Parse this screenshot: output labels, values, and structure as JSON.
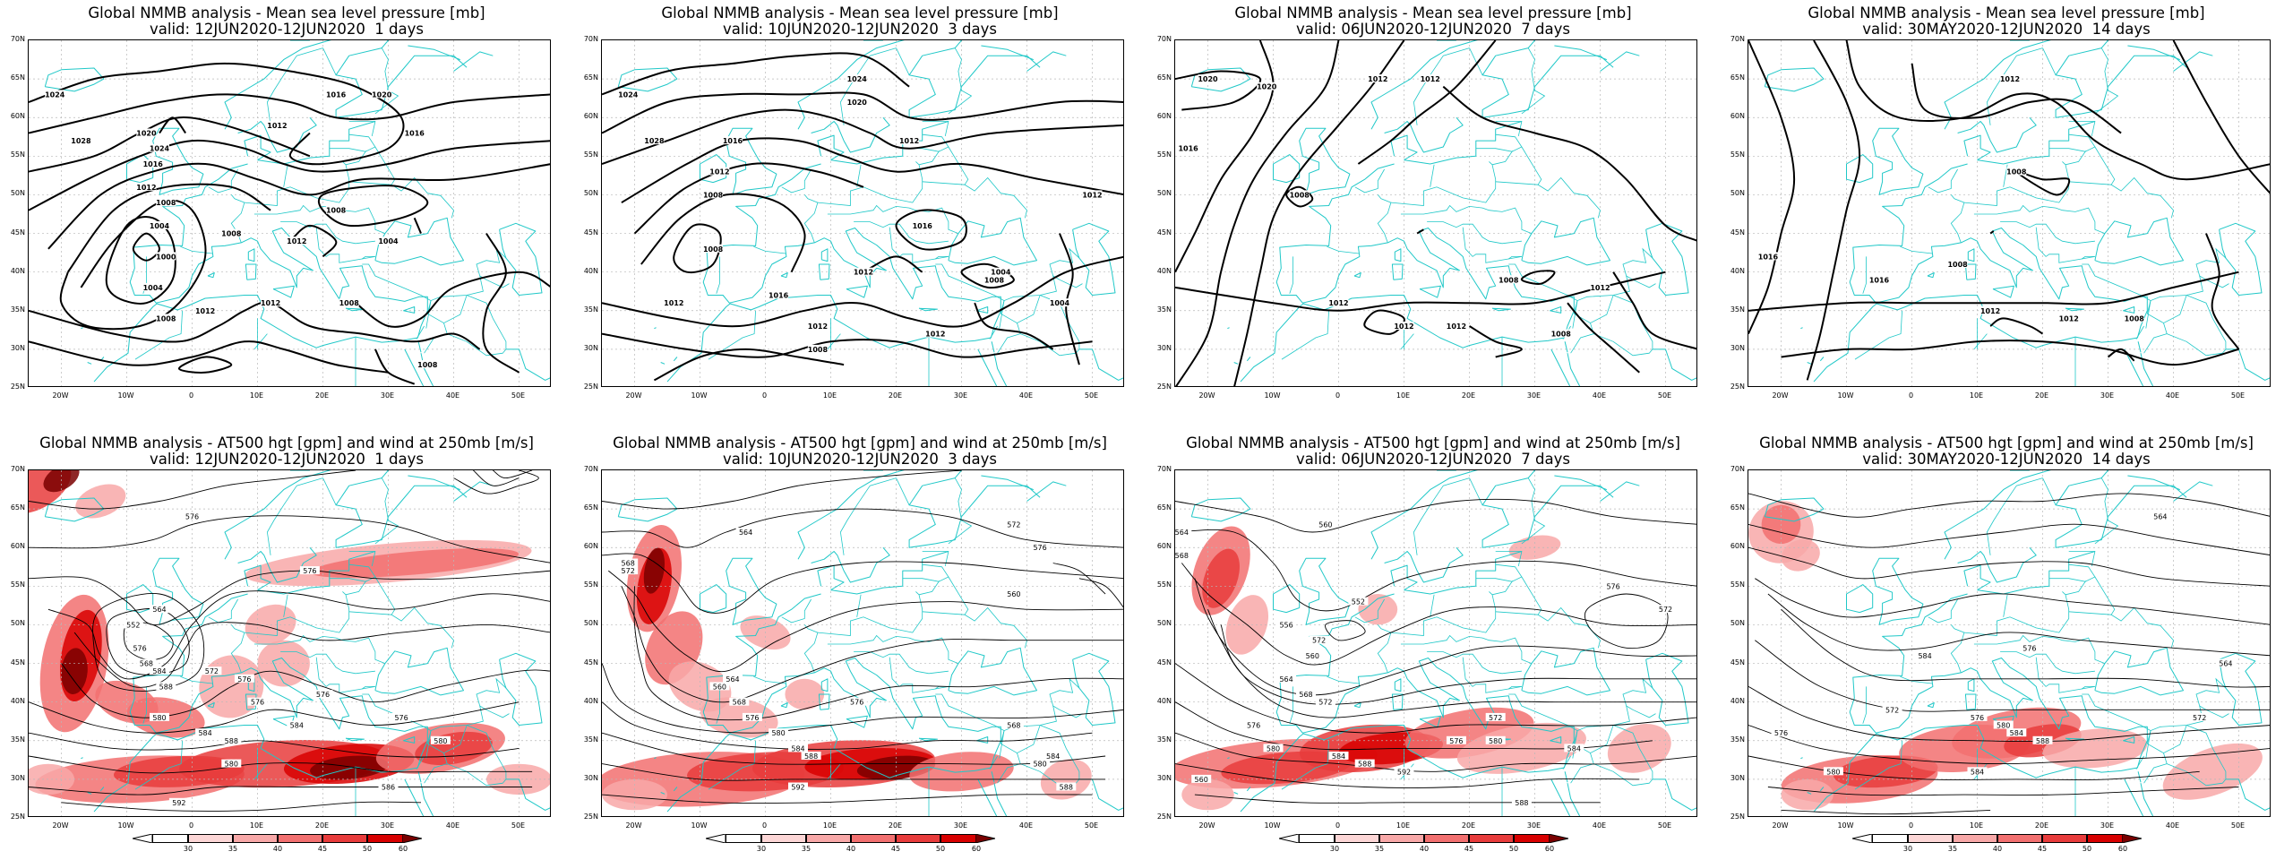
{
  "colors": {
    "coast": "#20c8c8",
    "contour": "#000000",
    "grid": "#b8b8b8",
    "wind": [
      "#ffffff",
      "#fcd6d6",
      "#f8a8a8",
      "#f27070",
      "#e83c3c",
      "#d80000",
      "#7a0000"
    ]
  },
  "lat_labels": [
    "70N",
    "65N",
    "60N",
    "55N",
    "50N",
    "45N",
    "40N",
    "35N",
    "30N",
    "25N"
  ],
  "lon_labels": [
    "20W",
    "10W",
    "0",
    "10E",
    "20E",
    "30E",
    "40E",
    "50E"
  ],
  "colorbar_ticks": [
    "30",
    "35",
    "40",
    "45",
    "50",
    "60"
  ],
  "panels": [
    {
      "title": "Global NMMB analysis - Mean sea level pressure [mb]",
      "subtitle": "valid: 12JUN2020-12JUN2020  1 days",
      "labels": [
        "1024",
        "1028",
        "1020",
        "1024",
        "1016",
        "1012",
        "1008",
        "1004",
        "1000",
        "1004",
        "1008",
        "1012",
        "1008",
        "1012",
        "1016",
        "1012",
        "1020",
        "1008",
        "1004",
        "1012",
        "1016",
        "1008",
        "1008"
      ]
    },
    {
      "title": "Global NMMB analysis - Mean sea level pressure [mb]",
      "subtitle": "valid: 10JUN2020-12JUN2020  3 days",
      "labels": [
        "1024",
        "1028",
        "1020",
        "1024",
        "1016",
        "1012",
        "1008",
        "1012",
        "1016",
        "1012",
        "1008",
        "1004",
        "1012",
        "1016",
        "1012",
        "1012",
        "1008",
        "1008",
        "1004",
        "1012"
      ]
    },
    {
      "title": "Global NMMB analysis - Mean sea level pressure [mb]",
      "subtitle": "valid: 06JUN2020-12JUN2020  7 days",
      "labels": [
        "1020",
        "1020",
        "1012",
        "1012",
        "1016",
        "1008",
        "1012",
        "1012",
        "1012",
        "1008",
        "1008",
        "1012"
      ]
    },
    {
      "title": "Global NMMB analysis - Mean sea level pressure [mb]",
      "subtitle": "valid: 30MAY2020-12JUN2020  14 days",
      "labels": [
        "1016",
        "1008",
        "1016",
        "1012",
        "1008",
        "1012",
        "1012",
        "1008"
      ]
    },
    {
      "title": "Global NMMB analysis - AT500 hgt [gpm] and wind at 250mb [m/s]",
      "subtitle": "valid: 12JUN2020-12JUN2020  1 days",
      "labels": [
        "576",
        "576",
        "576",
        "564",
        "552",
        "576",
        "568",
        "584",
        "588",
        "572",
        "576",
        "580",
        "584",
        "588",
        "584",
        "580",
        "592",
        "576",
        "576",
        "580",
        "586"
      ]
    },
    {
      "title": "Global NMMB analysis - AT500 hgt [gpm] and wind at 250mb [m/s]",
      "subtitle": "valid: 10JUN2020-12JUN2020  3 days",
      "labels": [
        "568",
        "572",
        "564",
        "560",
        "564",
        "568",
        "576",
        "580",
        "584",
        "588",
        "592",
        "576",
        "580",
        "584",
        "588",
        "576",
        "572",
        "560",
        "568"
      ]
    },
    {
      "title": "Global NMMB analysis - AT500 hgt [gpm] and wind at 250mb [m/s]",
      "subtitle": "valid: 06JUN2020-12JUN2020  7 days",
      "labels": [
        "560",
        "564",
        "568",
        "572",
        "556",
        "560",
        "564",
        "568",
        "572",
        "576",
        "580",
        "584",
        "588",
        "592",
        "572",
        "576",
        "580",
        "584",
        "588",
        "552",
        "576",
        "572",
        "560"
      ]
    },
    {
      "title": "Global NMMB analysis - AT500 hgt [gpm] and wind at 250mb [m/s]",
      "subtitle": "valid: 30MAY2020-12JUN2020  14 days",
      "labels": [
        "564",
        "576",
        "584",
        "564",
        "572",
        "576",
        "580",
        "584",
        "588",
        "572",
        "576",
        "580",
        "584"
      ]
    }
  ]
}
